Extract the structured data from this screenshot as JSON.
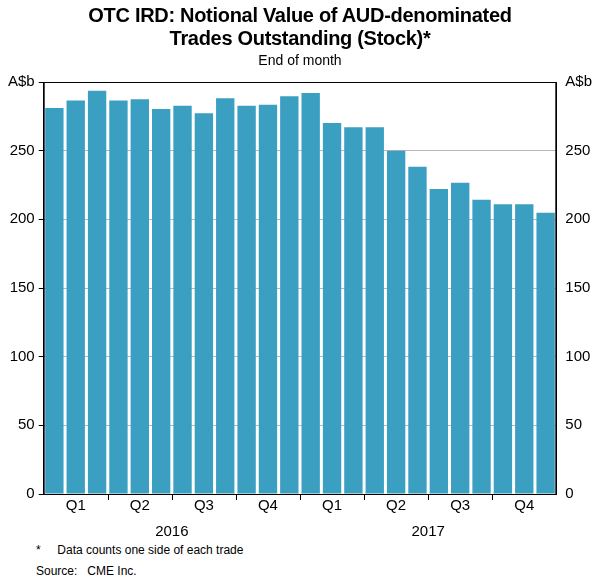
{
  "chart_data": {
    "type": "bar",
    "title": [
      "OTC IRD: Notional Value of AUD-denominated",
      "Trades Outstanding (Stock)*"
    ],
    "subtitle": "End of month",
    "categories": [
      null,
      "Q1",
      null,
      null,
      "Q2",
      null,
      null,
      "Q3",
      null,
      null,
      "Q4",
      null,
      null,
      "Q1",
      null,
      null,
      "Q2",
      null,
      null,
      "Q3",
      null,
      null,
      "Q4",
      null
    ],
    "x_group_labels": [
      "2016",
      "2017"
    ],
    "values": [
      281,
      286.6,
      293.6,
      286.6,
      287.4,
      280.4,
      282.7,
      277.3,
      288.2,
      282.7,
      283.5,
      289.7,
      292,
      270.2,
      267.1,
      267.1,
      250,
      238.3,
      222,
      226.6,
      214.2,
      211,
      211,
      204.8
    ],
    "color": "#3b9fc1",
    "ylim": [
      0,
      300
    ],
    "yticks": [
      0,
      50,
      100,
      150,
      200,
      250,
      {
        "value": 300,
        "label": "A$b"
      }
    ],
    "y2lim": [
      0,
      300
    ],
    "y2ticks": [
      0,
      50,
      100,
      150,
      200,
      250,
      {
        "value": 300,
        "label": "A$b"
      }
    ],
    "grid": true,
    "notes": [
      "*     Data counts one side of each trade",
      "Source:   CME Inc."
    ]
  }
}
